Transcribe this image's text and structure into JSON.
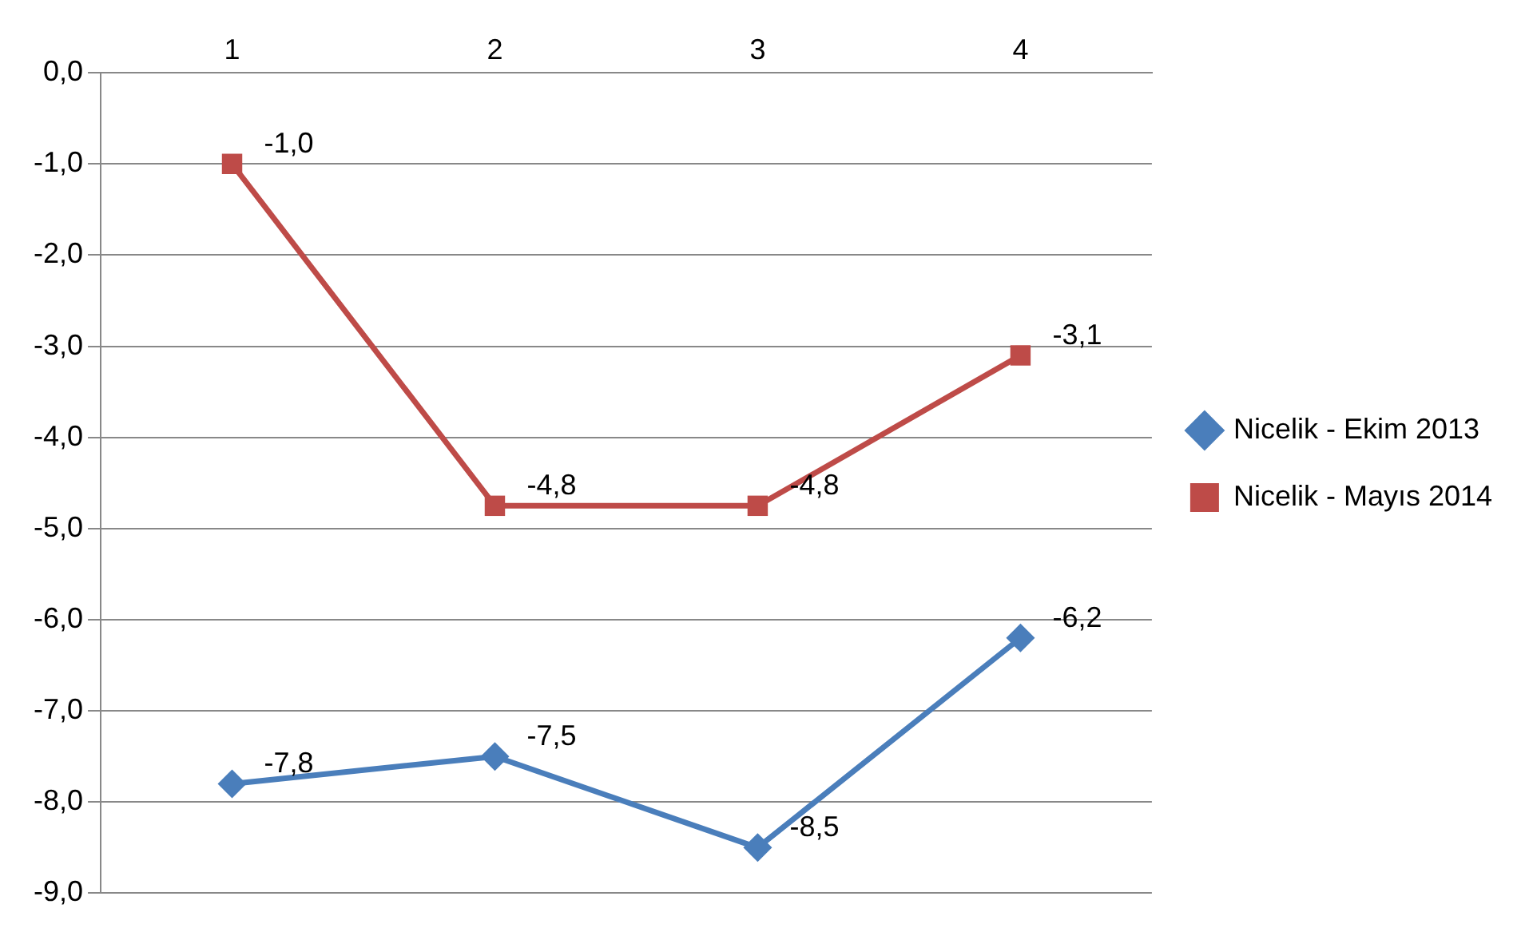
{
  "chart_data": {
    "type": "line",
    "categories": [
      "1",
      "2",
      "3",
      "4"
    ],
    "series": [
      {
        "name": "Nicelik - Ekim 2013",
        "color": "#4a7ebb",
        "marker": "diamond",
        "values": [
          -7.8,
          -7.5,
          -8.5,
          -6.2
        ],
        "value_labels": [
          "-7,8",
          "-7,5",
          "-8,5",
          "-6,2"
        ]
      },
      {
        "name": "Nicelik - Mayıs 2014",
        "color": "#be4b48",
        "marker": "square",
        "values": [
          -1.0,
          -4.75,
          -4.75,
          -3.1
        ],
        "value_labels": [
          "-1,0",
          "-4,8",
          "-4,8",
          "-3,1"
        ]
      }
    ],
    "ylim": [
      -9,
      0
    ],
    "yticks": [
      {
        "value": -9,
        "label": "-9,0"
      },
      {
        "value": -8,
        "label": "-8,0"
      },
      {
        "value": -7,
        "label": "-7,0"
      },
      {
        "value": -6,
        "label": "-6,0"
      },
      {
        "value": -5,
        "label": "-5,0"
      },
      {
        "value": -4,
        "label": "-4,0"
      },
      {
        "value": -3,
        "label": "-3,0"
      },
      {
        "value": -2,
        "label": "-2,0"
      },
      {
        "value": -1,
        "label": "-1,0"
      },
      {
        "value": 0,
        "label": "0,0"
      }
    ],
    "grid": "y",
    "legend": "right"
  }
}
